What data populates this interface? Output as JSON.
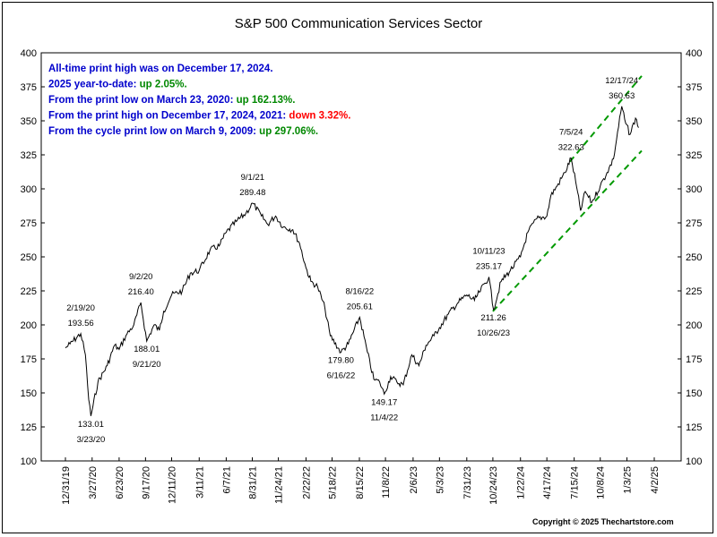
{
  "title": "S&P 500 Communication Services Sector",
  "copyright": "Copyright © 2025 Thechartstore.com",
  "info_lines": [
    {
      "prefix": "All-time print high was on December 17, 2024.",
      "value": "",
      "value_color": "#000000"
    },
    {
      "prefix": "2025 year-to-date:  ",
      "value": "up 2.05%.",
      "value_color": "#008800"
    },
    {
      "prefix": "From the print low on March 23, 2020:  ",
      "value": "up 162.13%.",
      "value_color": "#008800"
    },
    {
      "prefix": "From the print high on December 17, 2024, 2021:  ",
      "value": "down 3.32%.",
      "value_color": "#ff0000"
    },
    {
      "prefix": "From the cycle print low on March 9, 2009:  ",
      "value": "up 297.06%.",
      "value_color": "#008800"
    }
  ],
  "chart_data": {
    "type": "line",
    "title": "S&P 500 Communication Services Sector",
    "xlabel": "",
    "ylabel": "",
    "ylim": [
      100,
      400
    ],
    "y_ticks": [
      100,
      125,
      150,
      175,
      200,
      225,
      250,
      275,
      300,
      325,
      350,
      375,
      400
    ],
    "y_axis_sides": "both",
    "x_tick_labels": [
      "12/31/19",
      "3/27/20",
      "6/23/20",
      "9/17/20",
      "12/11/20",
      "3/11/21",
      "6/7/21",
      "8/31/21",
      "11/24/21",
      "2/22/22",
      "5/18/22",
      "8/15/22",
      "11/8/22",
      "2/6/23",
      "5/3/23",
      "7/31/23",
      "10/24/23",
      "1/22/24",
      "4/17/24",
      "7/15/24",
      "10/8/24",
      "1/3/25",
      "4/2/25"
    ],
    "xlim": [
      "12/31/19",
      "4/2/25"
    ],
    "grid": false,
    "series": [
      {
        "color": "#000000",
        "points": [
          [
            "12/31/19",
            183
          ],
          [
            "1/15/20",
            186
          ],
          [
            "2/19/20",
            193.56
          ],
          [
            "3/5/20",
            178
          ],
          [
            "3/16/20",
            145
          ],
          [
            "3/23/20",
            133.01
          ],
          [
            "4/15/20",
            158
          ],
          [
            "5/15/20",
            170
          ],
          [
            "6/8/20",
            185
          ],
          [
            "6/23/20",
            182
          ],
          [
            "7/15/20",
            192
          ],
          [
            "8/10/20",
            200
          ],
          [
            "9/2/20",
            216.4
          ],
          [
            "9/21/20",
            188.01
          ],
          [
            "10/15/20",
            200
          ],
          [
            "11/1/20",
            196
          ],
          [
            "11/15/20",
            210
          ],
          [
            "12/11/20",
            222
          ],
          [
            "1/15/21",
            225
          ],
          [
            "2/10/21",
            238
          ],
          [
            "3/11/21",
            240
          ],
          [
            "4/15/21",
            255
          ],
          [
            "5/15/21",
            258
          ],
          [
            "6/7/21",
            268
          ],
          [
            "7/10/21",
            276
          ],
          [
            "8/10/21",
            282
          ],
          [
            "9/1/21",
            289.48
          ],
          [
            "9/30/21",
            280
          ],
          [
            "10/20/21",
            274
          ],
          [
            "11/15/21",
            280
          ],
          [
            "12/10/21",
            272
          ],
          [
            "1/10/22",
            270
          ],
          [
            "2/1/22",
            260
          ],
          [
            "2/22/22",
            242
          ],
          [
            "3/10/22",
            232
          ],
          [
            "4/1/22",
            228
          ],
          [
            "4/25/22",
            212
          ],
          [
            "5/12/22",
            192
          ],
          [
            "6/16/22",
            179.8
          ],
          [
            "7/10/22",
            186
          ],
          [
            "8/16/22",
            205.61
          ],
          [
            "9/10/22",
            180
          ],
          [
            "10/1/22",
            160
          ],
          [
            "10/20/22",
            158
          ],
          [
            "11/4/22",
            149.17
          ],
          [
            "11/25/22",
            162
          ],
          [
            "12/15/22",
            158
          ],
          [
            "1/5/23",
            156
          ],
          [
            "2/2/23",
            178
          ],
          [
            "2/25/23",
            170
          ],
          [
            "3/20/23",
            185
          ],
          [
            "4/15/23",
            192
          ],
          [
            "5/3/23",
            198
          ],
          [
            "6/1/23",
            208
          ],
          [
            "7/1/23",
            216
          ],
          [
            "7/31/23",
            222
          ],
          [
            "8/25/23",
            218
          ],
          [
            "9/10/23",
            224
          ],
          [
            "10/11/23",
            235.17
          ],
          [
            "10/26/23",
            211.26
          ],
          [
            "11/20/23",
            232
          ],
          [
            "12/20/23",
            240
          ],
          [
            "1/22/24",
            250
          ],
          [
            "2/15/24",
            268
          ],
          [
            "3/15/24",
            278
          ],
          [
            "4/17/24",
            280
          ],
          [
            "4/30/24",
            295
          ],
          [
            "5/20/24",
            302
          ],
          [
            "6/15/24",
            312
          ],
          [
            "7/5/24",
            322.63
          ],
          [
            "7/20/24",
            305
          ],
          [
            "8/5/24",
            284
          ],
          [
            "8/20/24",
            298
          ],
          [
            "9/10/24",
            290
          ],
          [
            "10/8/24",
            302
          ],
          [
            "10/30/24",
            312
          ],
          [
            "11/20/24",
            322
          ],
          [
            "12/17/24",
            360.63
          ],
          [
            "12/30/24",
            348
          ],
          [
            "1/13/25",
            340
          ],
          [
            "1/31/25",
            352
          ],
          [
            "2/10/25",
            345
          ]
        ]
      }
    ],
    "trend_lines": [
      {
        "style": "dashed",
        "color": "#009900",
        "from": [
          "7/1/24",
          320
        ],
        "to": [
          "2/20/25",
          383
        ]
      },
      {
        "style": "dashed",
        "color": "#009900",
        "from": [
          "10/24/23",
          210
        ],
        "to": [
          "2/20/25",
          328
        ]
      }
    ],
    "annotations": [
      {
        "date_label": "2/19/20",
        "value_label": "193.56",
        "anchor": [
          "2/19/20",
          193.56
        ],
        "position": "above"
      },
      {
        "date_label": "3/23/20",
        "value_label": "133.01",
        "anchor": [
          "3/23/20",
          133.01
        ],
        "position": "below"
      },
      {
        "date_label": "9/2/20",
        "value_label": "216.40",
        "anchor": [
          "9/2/20",
          216.4
        ],
        "position": "above"
      },
      {
        "date_label": "9/21/20",
        "value_label": "188.01",
        "anchor": [
          "9/21/20",
          188.01
        ],
        "position": "below"
      },
      {
        "date_label": "9/1/21",
        "value_label": "289.48",
        "anchor": [
          "9/1/21",
          289.48
        ],
        "position": "above"
      },
      {
        "date_label": "6/16/22",
        "value_label": "179.80",
        "anchor": [
          "6/16/22",
          179.8
        ],
        "position": "below"
      },
      {
        "date_label": "8/16/22",
        "value_label": "205.61",
        "anchor": [
          "8/16/22",
          205.61
        ],
        "position": "above"
      },
      {
        "date_label": "11/4/22",
        "value_label": "149.17",
        "anchor": [
          "11/4/22",
          149.17
        ],
        "position": "below"
      },
      {
        "date_label": "10/11/23",
        "value_label": "235.17",
        "anchor": [
          "10/11/23",
          235.17
        ],
        "position": "above"
      },
      {
        "date_label": "10/26/23",
        "value_label": "211.26",
        "anchor": [
          "10/26/23",
          211.26
        ],
        "position": "below"
      },
      {
        "date_label": "7/5/24",
        "value_label": "322.63",
        "anchor": [
          "7/5/24",
          322.63
        ],
        "position": "above"
      },
      {
        "date_label": "12/17/24",
        "value_label": "360.63",
        "anchor": [
          "12/17/24",
          360.63
        ],
        "position": "above"
      }
    ]
  }
}
